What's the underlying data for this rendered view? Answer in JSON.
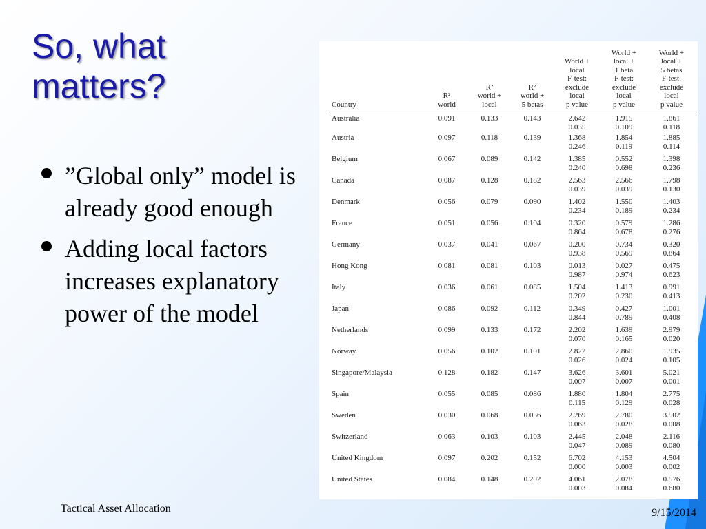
{
  "slide": {
    "title": "So, what matters?",
    "bullets": [
      "”Global only” model is already good enough",
      "Adding local factors increases explanatory power of the model"
    ],
    "footer_left": "Tactical Asset Allocation",
    "footer_right": "9/15/2014"
  },
  "table": {
    "headers": [
      "Country",
      "R²\nworld",
      "R²\nworld +\nlocal",
      "R²\nworld +\n5 betas",
      "World +\nlocal\nF-test:\nexclude\nlocal\np value",
      "World +\nlocal +\n1 beta\nF-test:\nexclude\nlocal\np value",
      "World +\nlocal +\n5 betas\nF-test:\nexclude\nlocal\np value"
    ],
    "rows": [
      {
        "country": "Australia",
        "r2w": "0.091",
        "r2l": "0.133",
        "r2b": "0.143",
        "p1": "2.642\n0.035",
        "p2": "1.915\n0.109",
        "p3": "1.861\n0.118"
      },
      {
        "country": "Austria",
        "r2w": "0.097",
        "r2l": "0.118",
        "r2b": "0.139",
        "p1": "1.368\n0.246",
        "p2": "1.854\n0.119",
        "p3": "1.885\n0.114"
      },
      {
        "country": "Belgium",
        "r2w": "0.067",
        "r2l": "0.089",
        "r2b": "0.142",
        "p1": "1.385\n0.240",
        "p2": "0.552\n0.698",
        "p3": "1.398\n0.236"
      },
      {
        "country": "Canada",
        "r2w": "0.087",
        "r2l": "0.128",
        "r2b": "0.182",
        "p1": "2.563\n0.039",
        "p2": "2.566\n0.039",
        "p3": "1.798\n0.130"
      },
      {
        "country": "Denmark",
        "r2w": "0.056",
        "r2l": "0.079",
        "r2b": "0.090",
        "p1": "1.402\n0.234",
        "p2": "1.550\n0.189",
        "p3": "1.403\n0.234"
      },
      {
        "country": "France",
        "r2w": "0.051",
        "r2l": "0.056",
        "r2b": "0.104",
        "p1": "0.320\n0.864",
        "p2": "0.579\n0.678",
        "p3": "1.286\n0.276"
      },
      {
        "country": "Germany",
        "r2w": "0.037",
        "r2l": "0.041",
        "r2b": "0.067",
        "p1": "0.200\n0.938",
        "p2": "0.734\n0.569",
        "p3": "0.320\n0.864"
      },
      {
        "country": "Hong Kong",
        "r2w": "0.081",
        "r2l": "0.081",
        "r2b": "0.103",
        "p1": "0.013\n0.987",
        "p2": "0.027\n0.974",
        "p3": "0.475\n0.623"
      },
      {
        "country": "Italy",
        "r2w": "0.036",
        "r2l": "0.061",
        "r2b": "0.085",
        "p1": "1.504\n0.202",
        "p2": "1.413\n0.230",
        "p3": "0.991\n0.413"
      },
      {
        "country": "Japan",
        "r2w": "0.086",
        "r2l": "0.092",
        "r2b": "0.112",
        "p1": "0.349\n0.844",
        "p2": "0.427\n0.789",
        "p3": "1.001\n0.408"
      },
      {
        "country": "Netherlands",
        "r2w": "0.099",
        "r2l": "0.133",
        "r2b": "0.172",
        "p1": "2.202\n0.070",
        "p2": "1.639\n0.165",
        "p3": "2.979\n0.020"
      },
      {
        "country": "Norway",
        "r2w": "0.056",
        "r2l": "0.102",
        "r2b": "0.101",
        "p1": "2.822\n0.026",
        "p2": "2.860\n0.024",
        "p3": "1.935\n0.105"
      },
      {
        "country": "Singapore/Malaysia",
        "r2w": "0.128",
        "r2l": "0.182",
        "r2b": "0.147",
        "p1": "3.626\n0.007",
        "p2": "3.601\n0.007",
        "p3": "5.021\n0.001"
      },
      {
        "country": "Spain",
        "r2w": "0.055",
        "r2l": "0.085",
        "r2b": "0.086",
        "p1": "1.880\n0.115",
        "p2": "1.804\n0.129",
        "p3": "2.775\n0.028"
      },
      {
        "country": "Sweden",
        "r2w": "0.030",
        "r2l": "0.068",
        "r2b": "0.056",
        "p1": "2.269\n0.063",
        "p2": "2.780\n0.028",
        "p3": "3.502\n0.008"
      },
      {
        "country": "Switzerland",
        "r2w": "0.063",
        "r2l": "0.103",
        "r2b": "0.103",
        "p1": "2.445\n0.047",
        "p2": "2.048\n0.089",
        "p3": "2.116\n0.080"
      },
      {
        "country": "United Kingdom",
        "r2w": "0.097",
        "r2l": "0.202",
        "r2b": "0.152",
        "p1": "6.702\n0.000",
        "p2": "4.153\n0.003",
        "p3": "4.504\n0.002"
      },
      {
        "country": "United States",
        "r2w": "0.084",
        "r2l": "0.148",
        "r2b": "0.202",
        "p1": "4.061\n0.003",
        "p2": "2.078\n0.084",
        "p3": "0.576\n0.680"
      }
    ]
  }
}
